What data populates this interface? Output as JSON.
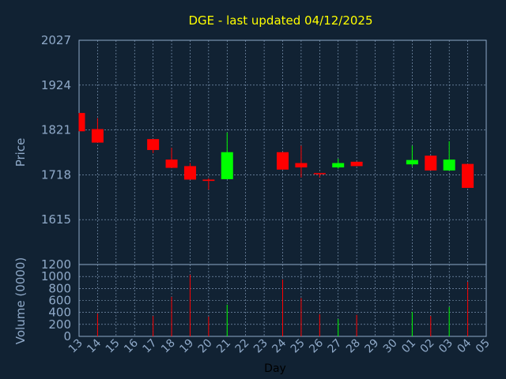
{
  "chart_data": {
    "type": "candlestick",
    "title": "DGE - last updated 04/12/2025",
    "xlabel": "Day",
    "price_panel": {
      "ylabel": "Price",
      "yticks": [
        "2027",
        "1924",
        "1821",
        "1718",
        "1615"
      ],
      "ylim": [
        1512,
        2027
      ]
    },
    "volume_panel": {
      "ylabel": "Volume (0000)",
      "top_label": "1200",
      "yticks": [
        "1000",
        "800",
        "600",
        "400",
        "200",
        "0"
      ],
      "ylim": [
        0,
        1200
      ]
    },
    "x_ticks": [
      "13",
      "14",
      "15",
      "16",
      "17",
      "18",
      "19",
      "20",
      "21",
      "22",
      "23",
      "24",
      "25",
      "26",
      "27",
      "28",
      "29",
      "30",
      "01",
      "02",
      "03",
      "04",
      "05"
    ],
    "candles": [
      {
        "x": "13",
        "open": 1860,
        "close": 1818,
        "high": 1860,
        "low": 1818,
        "volume": 0
      },
      {
        "x": "14",
        "open": 1823,
        "close": 1792,
        "high": 1848,
        "low": 1792,
        "volume": 380
      },
      {
        "x": "17",
        "open": 1800,
        "close": 1775,
        "high": 1800,
        "low": 1768,
        "volume": 340
      },
      {
        "x": "18",
        "open": 1753,
        "close": 1734,
        "high": 1780,
        "low": 1734,
        "volume": 660
      },
      {
        "x": "19",
        "open": 1738,
        "close": 1707,
        "high": 1745,
        "low": 1707,
        "volume": 1030
      },
      {
        "x": "20",
        "open": 1707,
        "close": 1704,
        "high": 1710,
        "low": 1684,
        "volume": 330
      },
      {
        "x": "21",
        "open": 1708,
        "close": 1770,
        "high": 1815,
        "low": 1708,
        "volume": 530
      },
      {
        "x": "24",
        "open": 1770,
        "close": 1730,
        "high": 1770,
        "low": 1730,
        "volume": 950
      },
      {
        "x": "25",
        "open": 1745,
        "close": 1735,
        "high": 1785,
        "low": 1712,
        "volume": 640
      },
      {
        "x": "26",
        "open": 1722,
        "close": 1721,
        "high": 1722,
        "low": 1712,
        "volume": 370
      },
      {
        "x": "27",
        "open": 1735,
        "close": 1745,
        "high": 1755,
        "low": 1732,
        "volume": 290
      },
      {
        "x": "28",
        "open": 1748,
        "close": 1738,
        "high": 1748,
        "low": 1738,
        "volume": 360
      },
      {
        "x": "01",
        "open": 1742,
        "close": 1752,
        "high": 1785,
        "low": 1737,
        "volume": 410
      },
      {
        "x": "02",
        "open": 1762,
        "close": 1728,
        "high": 1762,
        "low": 1728,
        "volume": 340
      },
      {
        "x": "03",
        "open": 1728,
        "close": 1753,
        "high": 1795,
        "low": 1728,
        "volume": 490
      },
      {
        "x": "04",
        "open": 1743,
        "close": 1688,
        "high": 1743,
        "low": 1688,
        "volume": 910
      }
    ],
    "colors": {
      "background": "#112233",
      "plot_border": "#8fa9c8",
      "grid": "#8fa9c8",
      "title": "#ffff00",
      "axis_text": "#8fa9c8",
      "up": "#00ff00",
      "down": "#ff0000"
    }
  }
}
